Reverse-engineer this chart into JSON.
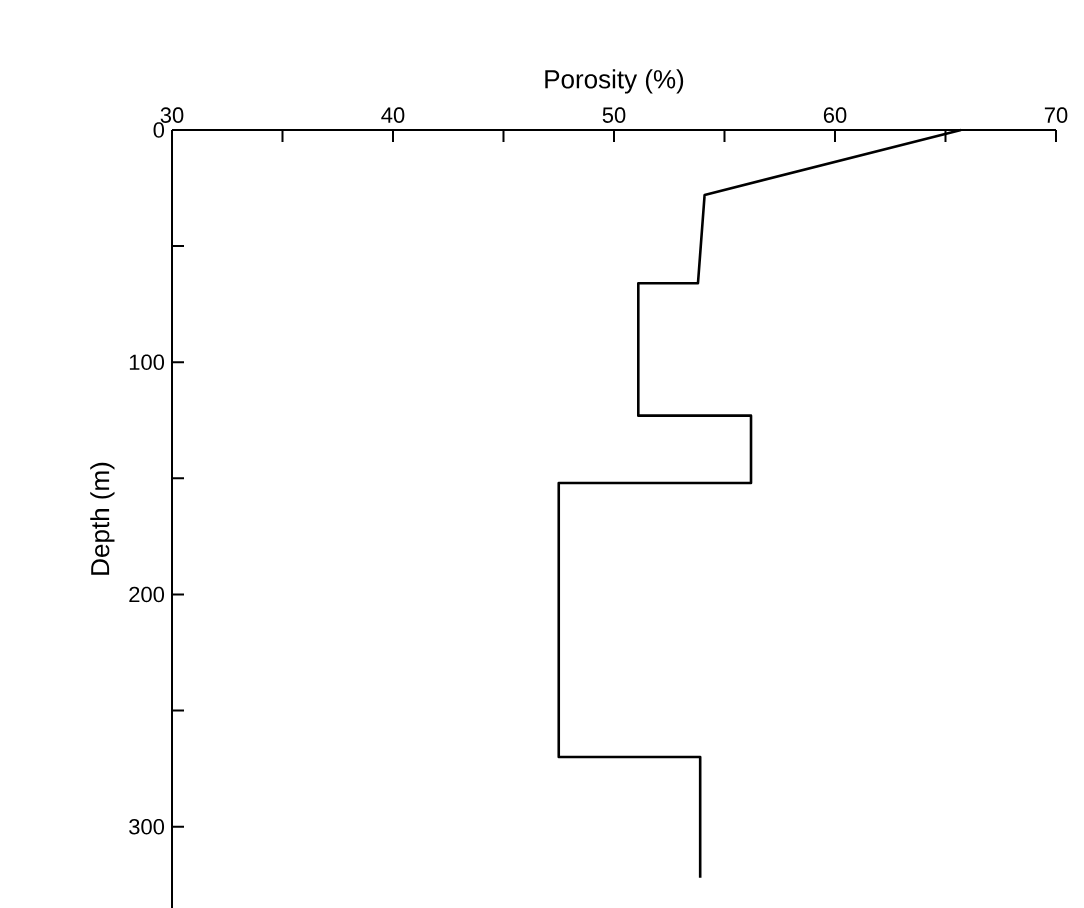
{
  "chart_data": {
    "type": "line",
    "xlabel": "Porosity (%)",
    "ylabel": "Depth (m)",
    "x": [
      65.7,
      54.1,
      53.8,
      51.1,
      51.1,
      56.2,
      56.2,
      47.5,
      47.5,
      53.9,
      53.9
    ],
    "series": [
      {
        "color": "#000000",
        "values": [
          0,
          28,
          66,
          66,
          123,
          123,
          152,
          152,
          270,
          270,
          322
        ]
      }
    ],
    "xlim": [
      30,
      70
    ],
    "ylim": [
      335,
      0
    ],
    "xticks": [
      30,
      {
        "value": 35,
        "label": null
      },
      40,
      {
        "value": 45,
        "label": null
      },
      50,
      {
        "value": 55,
        "label": null
      },
      60,
      {
        "value": 65,
        "label": null
      },
      70
    ],
    "yticks": [
      0,
      {
        "value": 50,
        "label": null
      },
      100,
      {
        "value": 150,
        "label": null
      },
      200,
      {
        "value": 250,
        "label": null
      },
      300
    ],
    "marker": "none",
    "line_style": "solid"
  }
}
